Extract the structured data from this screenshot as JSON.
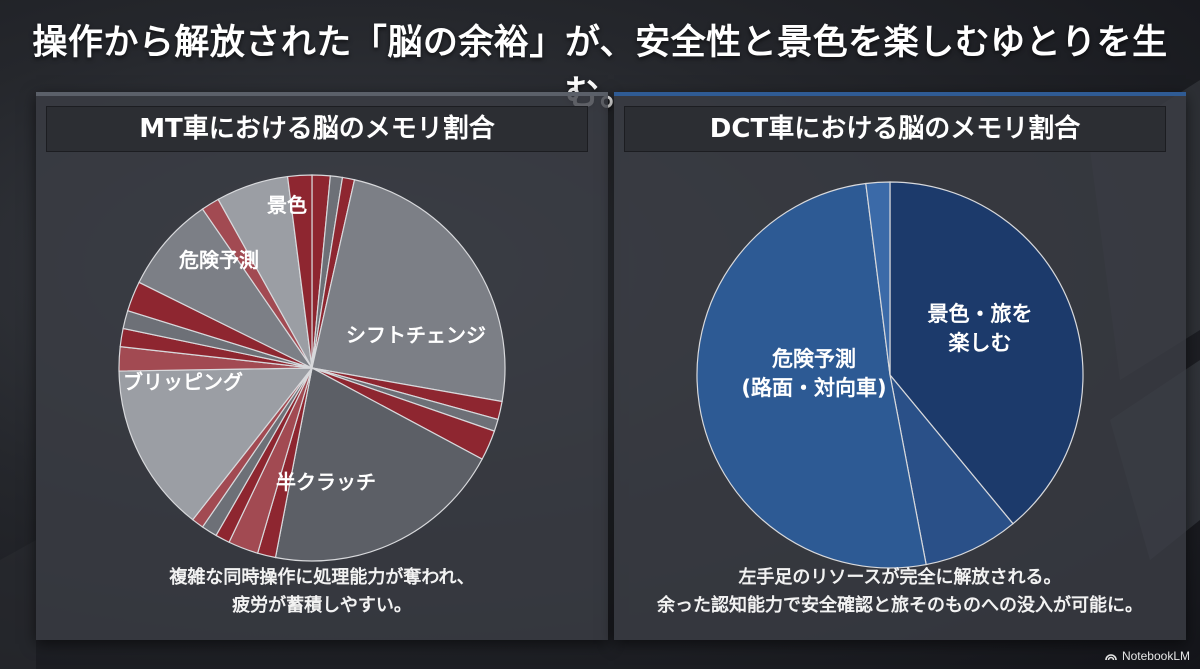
{
  "headline": "操作から解放された「脳の余裕」が、安全性と景色を楽しむゆとりを生む。",
  "watermark": "NotebookLM",
  "colors": {
    "mt_base": "#7c7f86",
    "mt_slice_light": "#9b9ea4",
    "mt_slice_mid": "#6d7077",
    "mt_slice_dark": "#5c5f66",
    "mt_accent_red": "#8e2630",
    "mt_accent_pink": "#a24a52",
    "dct_dark": "#1c3a6b",
    "dct_mid": "#2d5a94",
    "dct_light": "#3b6aa8"
  },
  "panels": {
    "mt": {
      "title": "MT車における脳のメモリ割合",
      "caption_lines": [
        "複雑な同時操作に処理能力が奪われ、",
        "疲労が蓄積しやすい。"
      ]
    },
    "dct": {
      "title": "DCT車における脳のメモリ割合",
      "caption_lines": [
        "左手足のリソースが完全に解放される。",
        "余った認知能力で安全確認と旅そのものへの没入が可能に。"
      ]
    }
  },
  "chart_data": [
    {
      "type": "pie",
      "title": "MT車における脳のメモリ割合",
      "slices": [
        {
          "label": "",
          "value": 1.5,
          "color": "#8e2630"
        },
        {
          "label": "",
          "value": 1.0,
          "color": "#6d7077"
        },
        {
          "label": "",
          "value": 1.0,
          "color": "#8e2630"
        },
        {
          "label": "シフトチェンジ",
          "value": 24.0,
          "color": "#7c7f86"
        },
        {
          "label": "",
          "value": 1.5,
          "color": "#8e2630"
        },
        {
          "label": "",
          "value": 1.0,
          "color": "#6d7077"
        },
        {
          "label": "",
          "value": 2.5,
          "color": "#8e2630"
        },
        {
          "label": "半クラッチ",
          "value": 20.0,
          "color": "#5c5f66"
        },
        {
          "label": "",
          "value": 1.5,
          "color": "#8e2630"
        },
        {
          "label": "",
          "value": 2.5,
          "color": "#a24a52"
        },
        {
          "label": "",
          "value": 1.2,
          "color": "#8e2630"
        },
        {
          "label": "",
          "value": 1.3,
          "color": "#6d7077"
        },
        {
          "label": "",
          "value": 1.0,
          "color": "#a24a52"
        },
        {
          "label": "ブリッピング",
          "value": 14.0,
          "color": "#9b9ea4"
        },
        {
          "label": "",
          "value": 2.0,
          "color": "#a24a52"
        },
        {
          "label": "",
          "value": 1.5,
          "color": "#8e2630"
        },
        {
          "label": "",
          "value": 1.5,
          "color": "#6d7077"
        },
        {
          "label": "",
          "value": 2.5,
          "color": "#8e2630"
        },
        {
          "label": "危険予測",
          "value": 8.0,
          "color": "#7c7f86"
        },
        {
          "label": "",
          "value": 1.5,
          "color": "#a24a52"
        },
        {
          "label": "景色",
          "value": 6.0,
          "color": "#9b9ea4"
        },
        {
          "label": "",
          "value": 2.0,
          "color": "#8e2630"
        }
      ]
    },
    {
      "type": "pie",
      "title": "DCT車における脳のメモリ割合",
      "slices": [
        {
          "label": "景色・旅を\n楽しむ",
          "value": 39.0,
          "color": "#1c3a6b"
        },
        {
          "label": "",
          "value": 8.0,
          "color": "#2a5088"
        },
        {
          "label": "危険予測\n(路面・対向車)",
          "value": 51.0,
          "color": "#2d5a94"
        },
        {
          "label": "",
          "value": 2.0,
          "color": "#3b6aa8"
        }
      ]
    }
  ]
}
